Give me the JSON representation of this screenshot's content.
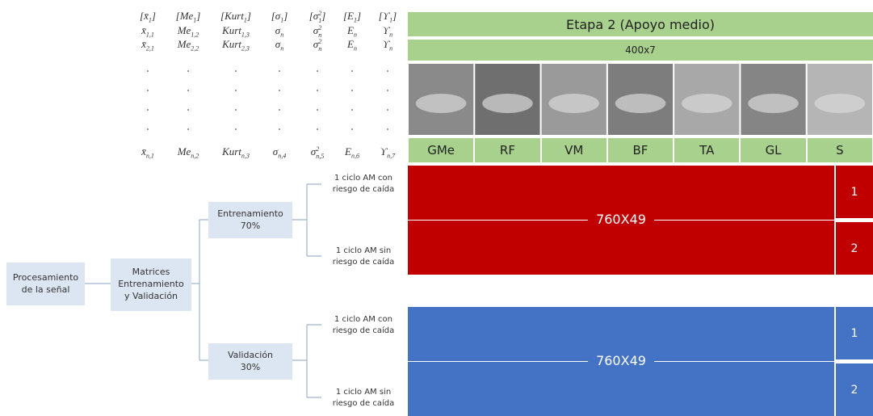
{
  "matrix": {
    "rows": [
      [
        {
          "text": "[x̄",
          "sub": "1",
          "after": "]"
        },
        {
          "text": "[Me",
          "sub": "1",
          "after": "]"
        },
        {
          "text": "[Kurt",
          "sub": "1",
          "after": "]"
        },
        {
          "text": "[σ",
          "sub": "1",
          "after": "]"
        },
        {
          "text": "[σ",
          "sup": "2",
          "sub": "1",
          "after": "]"
        },
        {
          "text": "[E",
          "sub": "1",
          "after": "]"
        },
        {
          "text": "[ϒ",
          "sub": "1",
          "after": "]"
        }
      ],
      [
        {
          "text": "x̄",
          "sub": "1,1"
        },
        {
          "text": "Me",
          "sub": "1,2"
        },
        {
          "text": "Kurt",
          "sub": "1,3"
        },
        {
          "text": "σ",
          "sub": "n"
        },
        {
          "text": "σ",
          "sup": "2",
          "sub": "n"
        },
        {
          "text": "E",
          "sub": "n"
        },
        {
          "text": "ϒ",
          "sub": "n"
        }
      ],
      [
        {
          "text": "x̄",
          "sub": "2,1"
        },
        {
          "text": "Me",
          "sub": "2,2"
        },
        {
          "text": "Kurt",
          "sub": "2,3"
        },
        {
          "text": "σ",
          "sub": "n"
        },
        {
          "text": "σ",
          "sup": "2",
          "sub": "n"
        },
        {
          "text": "E",
          "sub": "n"
        },
        {
          "text": "ϒ",
          "sub": "n"
        }
      ],
      [
        {
          "text": "x̄",
          "sub": "n,1"
        },
        {
          "text": "Me",
          "sub": "n,2"
        },
        {
          "text": "Kurt",
          "sub": "n,3"
        },
        {
          "text": "σ",
          "sub": "n,4"
        },
        {
          "text": "σ",
          "sup": "2",
          "sub": "n,5"
        },
        {
          "text": "E",
          "sub": "n,6"
        },
        {
          "text": "ϒ",
          "sub": "n,7"
        }
      ]
    ]
  },
  "header": {
    "stage": "Etapa 2 (Apoyo medio)",
    "dims": "400x7",
    "muscles": [
      "GMe",
      "RF",
      "VM",
      "BF",
      "TA",
      "GL",
      "S"
    ]
  },
  "tree": {
    "root": "Procesamiento de la señal",
    "matrices": "Matrices Entrenamiento y Validación",
    "branches": [
      {
        "label": "Entrenamiento",
        "pct": "70%",
        "leaves": [
          "1 ciclo AM con riesgo de caída",
          "1 ciclo AM sin riesgo de caída"
        ],
        "size": "760X49",
        "classes": [
          "1",
          "2"
        ]
      },
      {
        "label": "Validación",
        "pct": "30%",
        "leaves": [
          "1 ciclo AM con riesgo de caída",
          "1 ciclo AM sin riesgo de caída"
        ],
        "size": "760X49",
        "classes": [
          "1",
          "2"
        ]
      }
    ]
  }
}
